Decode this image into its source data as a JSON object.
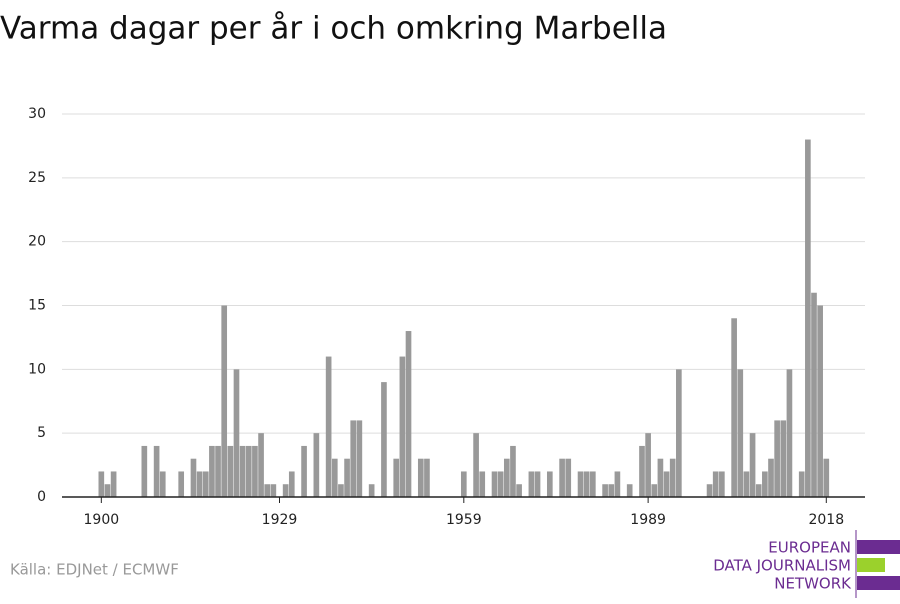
{
  "chart_data": {
    "type": "bar",
    "title": "Varma dagar per år i och omkring Marbella",
    "x": [
      1900,
      1901,
      1902,
      1903,
      1904,
      1905,
      1906,
      1907,
      1908,
      1909,
      1910,
      1911,
      1912,
      1913,
      1914,
      1915,
      1916,
      1917,
      1918,
      1919,
      1920,
      1921,
      1922,
      1923,
      1924,
      1925,
      1926,
      1927,
      1928,
      1929,
      1930,
      1931,
      1932,
      1933,
      1934,
      1935,
      1936,
      1937,
      1938,
      1939,
      1940,
      1941,
      1942,
      1943,
      1944,
      1945,
      1946,
      1947,
      1948,
      1949,
      1950,
      1951,
      1952,
      1953,
      1954,
      1955,
      1956,
      1957,
      1958,
      1959,
      1960,
      1961,
      1962,
      1963,
      1964,
      1965,
      1966,
      1967,
      1968,
      1969,
      1970,
      1971,
      1972,
      1973,
      1974,
      1975,
      1976,
      1977,
      1978,
      1979,
      1980,
      1981,
      1982,
      1983,
      1984,
      1985,
      1986,
      1987,
      1988,
      1989,
      1990,
      1991,
      1992,
      1993,
      1994,
      1995,
      1996,
      1997,
      1998,
      1999,
      2000,
      2001,
      2002,
      2003,
      2004,
      2005,
      2006,
      2007,
      2008,
      2009,
      2010,
      2011,
      2012,
      2013,
      2014,
      2015,
      2016,
      2017,
      2018
    ],
    "values": [
      2,
      1,
      2,
      0,
      0,
      0,
      0,
      4,
      0,
      4,
      2,
      0,
      0,
      2,
      0,
      3,
      2,
      2,
      4,
      4,
      15,
      4,
      10,
      4,
      4,
      4,
      5,
      1,
      1,
      0,
      1,
      2,
      0,
      4,
      0,
      5,
      0,
      11,
      3,
      1,
      3,
      6,
      6,
      0,
      1,
      0,
      9,
      0,
      3,
      11,
      13,
      0,
      3,
      3,
      0,
      0,
      0,
      0,
      0,
      2,
      0,
      5,
      2,
      0,
      2,
      2,
      3,
      4,
      1,
      0,
      2,
      2,
      0,
      2,
      0,
      3,
      3,
      0,
      2,
      2,
      2,
      0,
      1,
      1,
      2,
      0,
      1,
      0,
      4,
      5,
      1,
      3,
      2,
      3,
      10,
      0,
      0,
      0,
      0,
      1,
      2,
      2,
      0,
      14,
      10,
      2,
      5,
      1,
      2,
      3,
      6,
      6,
      10,
      0,
      2,
      28,
      16,
      15,
      3
    ],
    "color": "#999999",
    "xlim": [
      1893.6,
      2024.3
    ],
    "xticks": [
      1900,
      1929,
      1959,
      1989,
      2018
    ],
    "ylim": [
      0,
      30
    ],
    "yticks": [
      0,
      5,
      10,
      15,
      20,
      25,
      30
    ],
    "grid": true,
    "source": "Källa: EDJNet / ECMWF",
    "logo": [
      "EUROPEAN",
      "DATA JOURNALISM",
      "NETWORK"
    ]
  }
}
